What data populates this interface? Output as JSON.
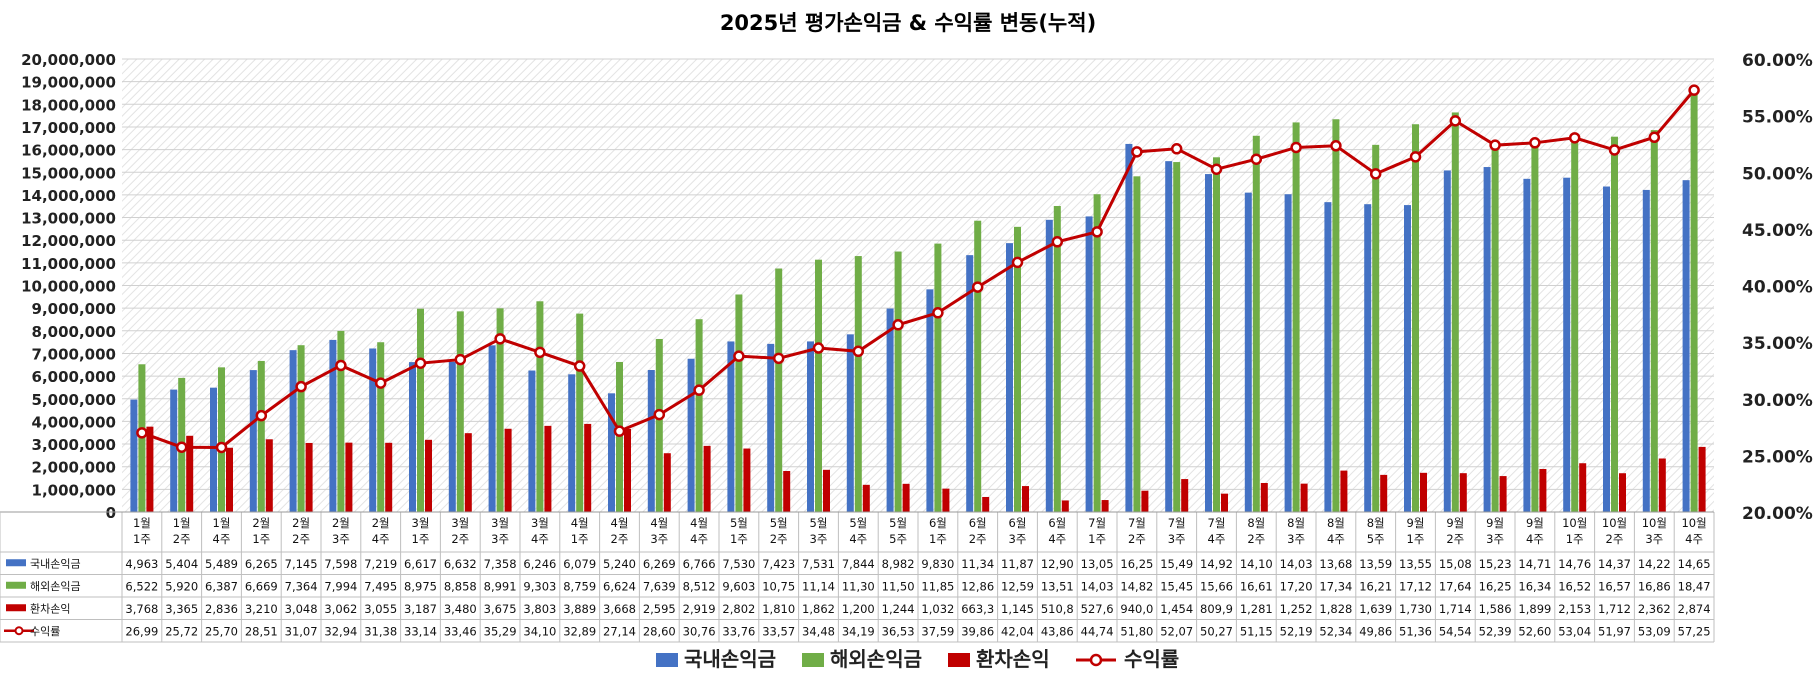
{
  "chart_data": {
    "type": "bar",
    "title": "2025년 평가손익금 & 수익률 변동(누적)",
    "combo": "bar+line",
    "secondary_axis_series": "수익률",
    "categories": [
      "1월 1주",
      "1월 2주",
      "1월 4주",
      "2월 1주",
      "2월 2주",
      "2월 3주",
      "2월 4주",
      "3월 1주",
      "3월 2주",
      "3월 3주",
      "3월 4주",
      "4월 1주",
      "4월 2주",
      "4월 3주",
      "4월 4주",
      "5월 1주",
      "5월 2주",
      "5월 3주",
      "5월 4주",
      "5월 5주",
      "6월 1주",
      "6월 2주",
      "6월 3주",
      "6월 4주",
      "7월 1주",
      "7월 2주",
      "7월 3주",
      "7월 4주",
      "8월 2주",
      "8월 3주",
      "8월 4주",
      "8월 5주",
      "9월 1주",
      "9월 2주",
      "9월 3주",
      "9월 4주",
      "10월 1주",
      "10월 2주",
      "10월 3주",
      "10월 4주"
    ],
    "category_lines": [
      [
        "1월",
        "1주"
      ],
      [
        "1월",
        "2주"
      ],
      [
        "1월",
        "4주"
      ],
      [
        "2월",
        "1주"
      ],
      [
        "2월",
        "2주"
      ],
      [
        "2월",
        "3주"
      ],
      [
        "2월",
        "4주"
      ],
      [
        "3월",
        "1주"
      ],
      [
        "3월",
        "2주"
      ],
      [
        "3월",
        "3주"
      ],
      [
        "3월",
        "4주"
      ],
      [
        "4월",
        "1주"
      ],
      [
        "4월",
        "2주"
      ],
      [
        "4월",
        "3주"
      ],
      [
        "4월",
        "4주"
      ],
      [
        "5월",
        "1주"
      ],
      [
        "5월",
        "2주"
      ],
      [
        "5월",
        "3주"
      ],
      [
        "5월",
        "4주"
      ],
      [
        "5월",
        "5주"
      ],
      [
        "6월",
        "1주"
      ],
      [
        "6월",
        "2주"
      ],
      [
        "6월",
        "3주"
      ],
      [
        "6월",
        "4주"
      ],
      [
        "7월",
        "1주"
      ],
      [
        "7월",
        "2주"
      ],
      [
        "7월",
        "3주"
      ],
      [
        "7월",
        "4주"
      ],
      [
        "8월",
        "2주"
      ],
      [
        "8월",
        "3주"
      ],
      [
        "8월",
        "4주"
      ],
      [
        "8월",
        "5주"
      ],
      [
        "9월",
        "1주"
      ],
      [
        "9월",
        "2주"
      ],
      [
        "9월",
        "3주"
      ],
      [
        "9월",
        "4주"
      ],
      [
        "10월",
        "1주"
      ],
      [
        "10월",
        "2주"
      ],
      [
        "10월",
        "3주"
      ],
      [
        "10월",
        "4주"
      ]
    ],
    "y_left": {
      "ylim": [
        0,
        20000000
      ],
      "ticks": [
        "0",
        "1,000,000",
        "2,000,000",
        "3,000,000",
        "4,000,000",
        "5,000,000",
        "6,000,000",
        "7,000,000",
        "8,000,000",
        "9,000,000",
        "10,000,000",
        "11,000,000",
        "12,000,000",
        "13,000,000",
        "14,000,000",
        "15,000,000",
        "16,000,000",
        "17,000,000",
        "18,000,000",
        "19,000,000",
        "20,000,000"
      ]
    },
    "y_right": {
      "ylim": [
        20,
        60
      ],
      "ticks": [
        "20.00%",
        "25.00%",
        "30.00%",
        "35.00%",
        "40.00%",
        "45.00%",
        "50.00%",
        "55.00%",
        "60.00%"
      ]
    },
    "grid": true,
    "legend_position": "bottom",
    "series": [
      {
        "name": "국내손익금",
        "kind": "bar",
        "color": "#4472C4",
        "values": [
          4963000,
          5404000,
          5489000,
          6265000,
          7145000,
          7598000,
          7219000,
          6617000,
          6632000,
          7358000,
          6246000,
          6079000,
          5240000,
          6269000,
          6766000,
          7530000,
          7423000,
          7531000,
          7844000,
          8982000,
          9830000,
          11340000,
          11870000,
          12900000,
          13050000,
          16250000,
          15490000,
          14920000,
          14100000,
          14030000,
          13680000,
          13590000,
          13550000,
          15080000,
          15230000,
          14710000,
          14760000,
          14370000,
          14220000,
          14650000
        ],
        "table_labels": [
          "4,963",
          "5,404",
          "5,489",
          "6,265",
          "7,145",
          "7,598",
          "7,219",
          "6,617",
          "6,632",
          "7,358",
          "6,246",
          "6,079",
          "5,240",
          "6,269",
          "6,766",
          "7,530",
          "7,423",
          "7,531",
          "7,844",
          "8,982",
          "9,830",
          "11,34",
          "11,87",
          "12,90",
          "13,05",
          "16,25",
          "15,49",
          "14,92",
          "14,10",
          "14,03",
          "13,68",
          "13,59",
          "13,55",
          "15,08",
          "15,23",
          "14,71",
          "14,76",
          "14,37",
          "14,22",
          "14,65"
        ]
      },
      {
        "name": "해외손익금",
        "kind": "bar",
        "color": "#70AD47",
        "values": [
          6522000,
          5920000,
          6387000,
          6669000,
          7364000,
          7994000,
          7495000,
          8975000,
          8858000,
          8991000,
          9303000,
          8759000,
          6624000,
          7639000,
          8512000,
          9603000,
          10750000,
          11140000,
          11300000,
          11500000,
          11850000,
          12860000,
          12590000,
          13510000,
          14030000,
          14820000,
          15450000,
          15660000,
          16610000,
          17200000,
          17340000,
          16210000,
          17120000,
          17640000,
          16250000,
          16340000,
          16520000,
          16570000,
          16860000,
          18470000
        ],
        "table_labels": [
          "6,522",
          "5,920",
          "6,387",
          "6,669",
          "7,364",
          "7,994",
          "7,495",
          "8,975",
          "8,858",
          "8,991",
          "9,303",
          "8,759",
          "6,624",
          "7,639",
          "8,512",
          "9,603",
          "10,75",
          "11,14",
          "11,30",
          "11,50",
          "11,85",
          "12,86",
          "12,59",
          "13,51",
          "14,03",
          "14,82",
          "15,45",
          "15,66",
          "16,61",
          "17,20",
          "17,34",
          "16,21",
          "17,12",
          "17,64",
          "16,25",
          "16,34",
          "16,52",
          "16,57",
          "16,86",
          "18,47"
        ]
      },
      {
        "name": "환차손익",
        "kind": "bar",
        "color": "#C00000",
        "values": [
          3768000,
          3365000,
          2836000,
          3210000,
          3048000,
          3062000,
          3055000,
          3187000,
          3480000,
          3675000,
          3803000,
          3889000,
          3668000,
          2595000,
          2919000,
          2802000,
          1810000,
          1862000,
          1200000,
          1244000,
          1032000,
          663300,
          1145000,
          510800,
          527600,
          940000,
          1454000,
          809900,
          1281000,
          1252000,
          1828000,
          1639000,
          1730000,
          1714000,
          1586000,
          1899000,
          2153000,
          1712000,
          2362000,
          2874000
        ],
        "table_labels": [
          "3,768",
          "3,365",
          "2,836",
          "3,210",
          "3,048",
          "3,062",
          "3,055",
          "3,187",
          "3,480",
          "3,675",
          "3,803",
          "3,889",
          "3,668",
          "2,595",
          "2,919",
          "2,802",
          "1,810",
          "1,862",
          "1,200",
          "1,244",
          "1,032",
          "663,3",
          "1,145",
          "510,8",
          "527,6",
          "940,0",
          "1,454",
          "809,9",
          "1,281",
          "1,252",
          "1,828",
          "1,639",
          "1,730",
          "1,714",
          "1,586",
          "1,899",
          "2,153",
          "1,712",
          "2,362",
          "2,874"
        ]
      },
      {
        "name": "수익률",
        "kind": "line",
        "color": "#C00000",
        "values": [
          26.99,
          25.72,
          25.7,
          28.51,
          31.07,
          32.94,
          31.38,
          33.14,
          33.46,
          35.29,
          34.1,
          32.89,
          27.14,
          28.6,
          30.76,
          33.76,
          33.57,
          34.48,
          34.19,
          36.53,
          37.59,
          39.86,
          42.04,
          43.86,
          44.74,
          51.8,
          52.07,
          50.27,
          51.15,
          52.19,
          52.34,
          49.86,
          51.36,
          54.54,
          52.39,
          52.6,
          53.04,
          51.97,
          53.09,
          57.25
        ],
        "table_labels": [
          "26,99",
          "25,72",
          "25,70",
          "28,51",
          "31,07",
          "32,94",
          "31,38",
          "33,14",
          "33,46",
          "35,29",
          "34,10",
          "32,89",
          "27,14",
          "28,60",
          "30,76",
          "33,76",
          "33,57",
          "34,48",
          "34,19",
          "36,53",
          "37,59",
          "39,86",
          "42,04",
          "43,86",
          "44,74",
          "51,80",
          "52,07",
          "50,27",
          "51,15",
          "52,19",
          "52,34",
          "49,86",
          "51,36",
          "54,54",
          "52,39",
          "52,60",
          "53,04",
          "51,97",
          "53,09",
          "57,25"
        ]
      }
    ]
  }
}
